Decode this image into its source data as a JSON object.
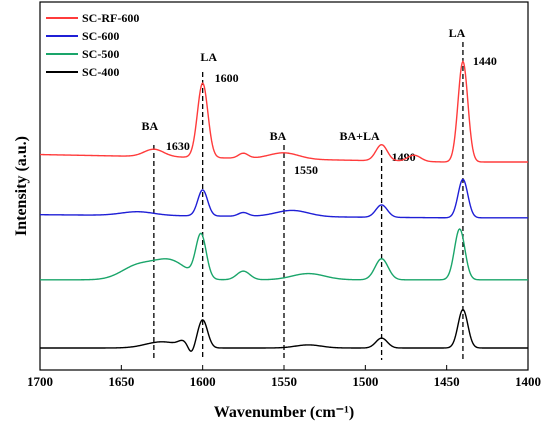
{
  "chart_data": {
    "type": "line",
    "xlabel": "Wavenumber (cm⁻¹)",
    "ylabel": "Intensity (a.u.)",
    "xlim": [
      1700,
      1400
    ],
    "x_reversed": true,
    "x_ticks": [
      1700,
      1650,
      1600,
      1550,
      1500,
      1450,
      1400
    ],
    "y_ticks_shown": false,
    "grid": false,
    "legend_position": "top-left",
    "series": [
      {
        "name": "SC-RF-600",
        "color": "#ff3b3b",
        "offset": 3.0,
        "baseline": 0.12,
        "peaks": [
          {
            "x": 1630,
            "h": 0.12,
            "w": 6
          },
          {
            "x": 1600,
            "h": 1.2,
            "w": 3.2
          },
          {
            "x": 1575,
            "h": 0.08,
            "w": 3
          },
          {
            "x": 1550,
            "h": 0.1,
            "w": 9
          },
          {
            "x": 1490,
            "h": 0.26,
            "w": 3.5
          },
          {
            "x": 1470,
            "h": 0.1,
            "w": 4
          },
          {
            "x": 1440,
            "h": 1.62,
            "w": 3.0
          }
        ]
      },
      {
        "name": "SC-600",
        "color": "#1f1fd6",
        "offset": 2.1,
        "baseline": 0.05,
        "peaks": [
          {
            "x": 1640,
            "h": 0.06,
            "w": 10
          },
          {
            "x": 1600,
            "h": 0.42,
            "w": 3.0
          },
          {
            "x": 1575,
            "h": 0.06,
            "w": 3
          },
          {
            "x": 1545,
            "h": 0.1,
            "w": 10
          },
          {
            "x": 1490,
            "h": 0.2,
            "w": 3.5
          },
          {
            "x": 1440,
            "h": 0.62,
            "w": 3.0
          }
        ]
      },
      {
        "name": "SC-500",
        "color": "#1aa56a",
        "offset": 1.1,
        "baseline": 0.0,
        "peaks": [
          {
            "x": 1640,
            "h": 0.22,
            "w": 10
          },
          {
            "x": 1620,
            "h": 0.3,
            "w": 10
          },
          {
            "x": 1601,
            "h": 0.7,
            "w": 3.2
          },
          {
            "x": 1575,
            "h": 0.14,
            "w": 4
          },
          {
            "x": 1535,
            "h": 0.1,
            "w": 10
          },
          {
            "x": 1490,
            "h": 0.34,
            "w": 4
          },
          {
            "x": 1442,
            "h": 0.82,
            "w": 3.2
          }
        ]
      },
      {
        "name": "SC-400",
        "color": "#000000",
        "offset": 0.0,
        "baseline": 0.0,
        "peaks": [
          {
            "x": 1625,
            "h": 0.1,
            "w": 10
          },
          {
            "x": 1612,
            "h": 0.08,
            "w": 3
          },
          {
            "x": 1600,
            "h": 0.45,
            "w": 3.0
          },
          {
            "x": 1535,
            "h": 0.05,
            "w": 8
          },
          {
            "x": 1490,
            "h": 0.16,
            "w": 3.5
          },
          {
            "x": 1440,
            "h": 0.62,
            "w": 3.0
          }
        ],
        "dips": [
          {
            "x": 1607,
            "h": 0.12,
            "w": 2
          }
        ]
      }
    ],
    "annotations": [
      {
        "label": "BA",
        "x": 1630,
        "value_label": "1630"
      },
      {
        "label": "LA",
        "x": 1600,
        "value_label": "1600"
      },
      {
        "label": "BA",
        "x": 1550,
        "value_label": "1550"
      },
      {
        "label": "BA+LA",
        "x": 1490,
        "value_label": "1490"
      },
      {
        "label": "LA",
        "x": 1440,
        "value_label": "1440"
      }
    ]
  }
}
